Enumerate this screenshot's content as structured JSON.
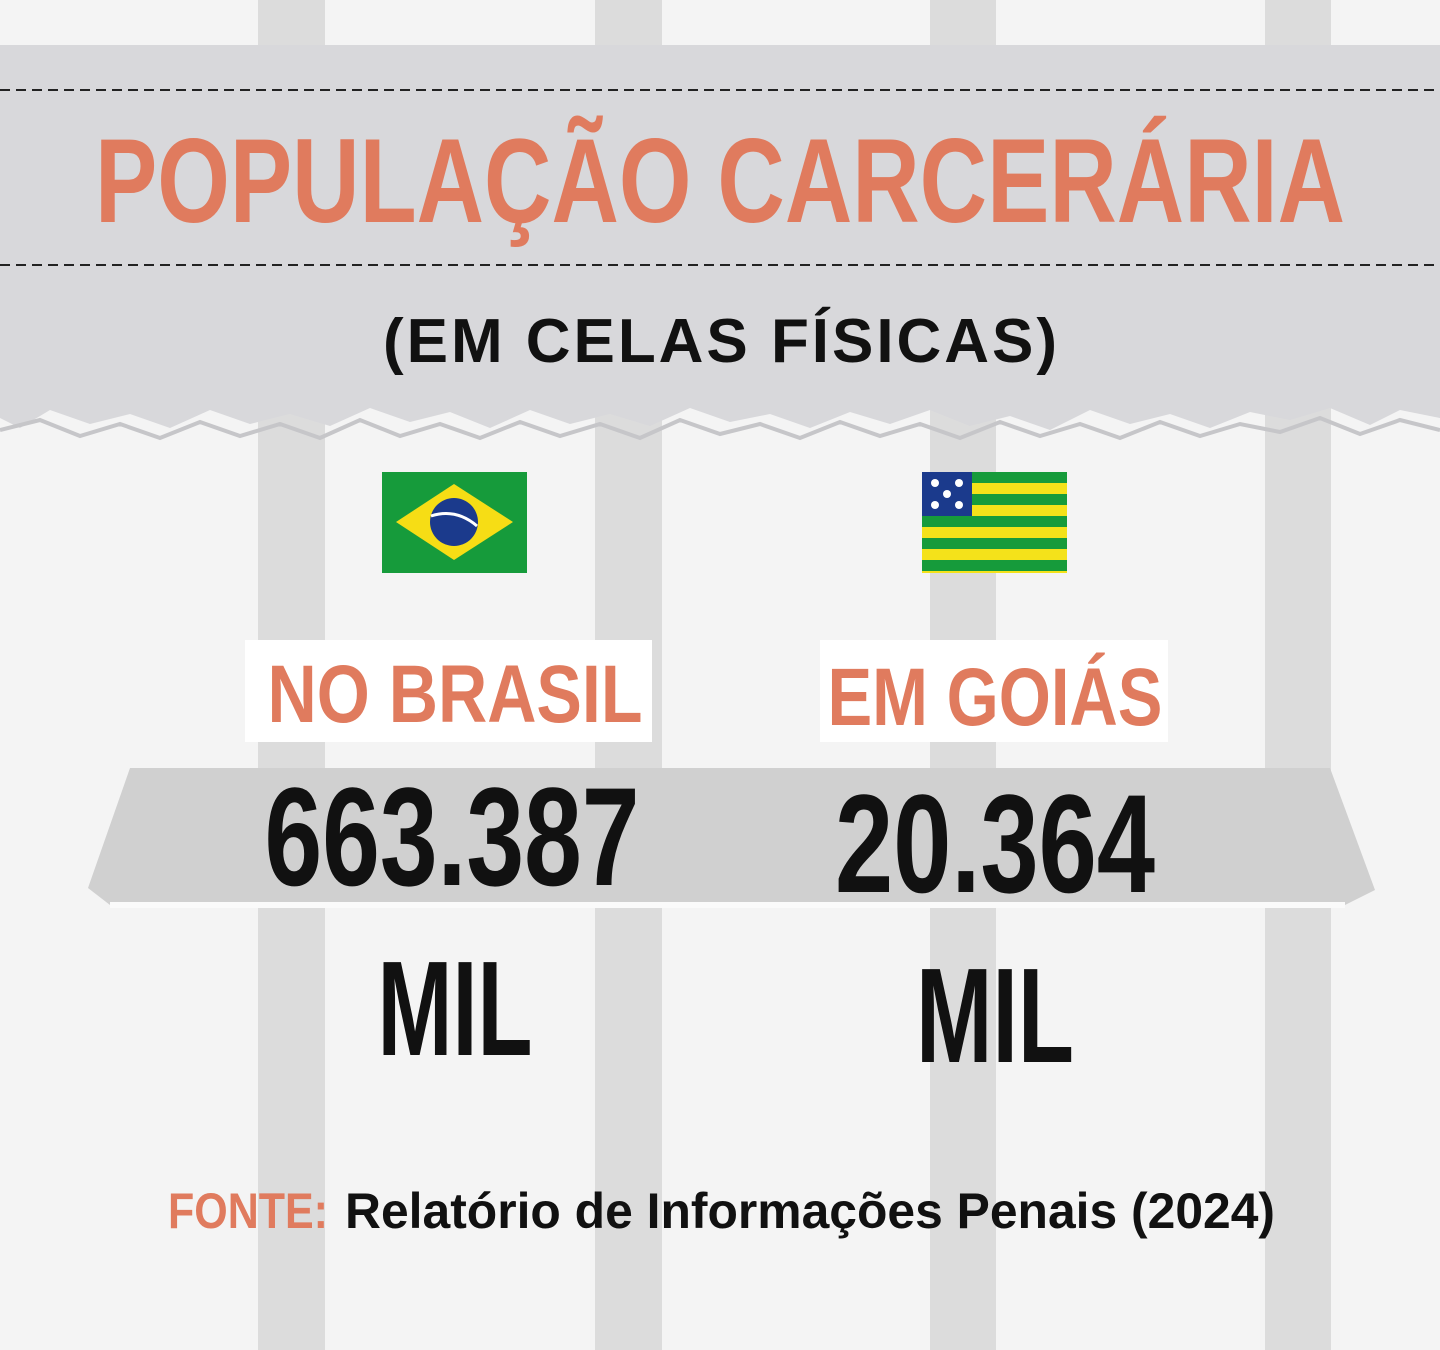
{
  "header": {
    "title": "POPULAÇÃO CARCERÁRIA",
    "subtitle": "(EM CELAS FÍSICAS)"
  },
  "items": [
    {
      "label": "NO BRASIL",
      "value": "663.387",
      "unit": "MIL"
    },
    {
      "label": "EM GOIÁS",
      "value": "20.364",
      "unit": "MIL"
    }
  ],
  "source": {
    "label": "FONTE:",
    "text": "Relatório de Informações Penais (2024)"
  }
}
